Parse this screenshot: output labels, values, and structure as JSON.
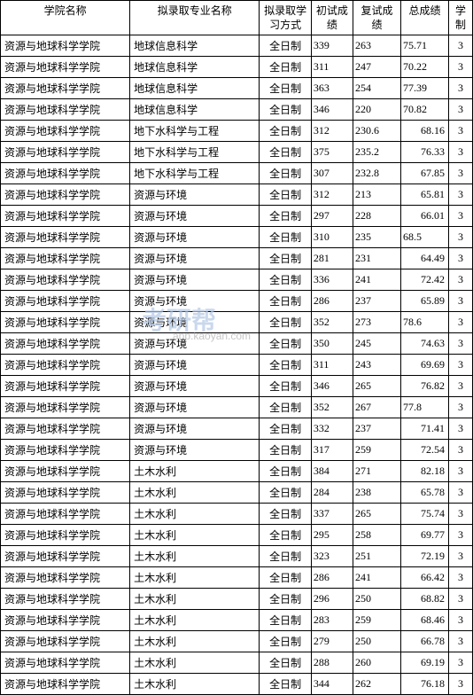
{
  "watermark": {
    "main": "考研帮",
    "sub": "app.kaoyan.com"
  },
  "columns": [
    {
      "label": "学院名称",
      "class": "col-school"
    },
    {
      "label": "拟录取专业名称",
      "class": "col-major"
    },
    {
      "label": "拟录取学习方式",
      "class": "col-mode"
    },
    {
      "label": "初试成绩",
      "class": "col-score1"
    },
    {
      "label": "复试成绩",
      "class": "col-score2"
    },
    {
      "label": "总成绩",
      "class": "col-total"
    },
    {
      "label": "学制",
      "class": "col-years"
    }
  ],
  "rows": [
    {
      "school": "资源与地球科学学院",
      "major": "地球信息科学",
      "mode": "全日制",
      "s1": "339",
      "s2": "263",
      "total": "75.71",
      "align": "left",
      "years": "3"
    },
    {
      "school": "资源与地球科学学院",
      "major": "地球信息科学",
      "mode": "全日制",
      "s1": "311",
      "s2": "247",
      "total": "70.22",
      "align": "left",
      "years": "3"
    },
    {
      "school": "资源与地球科学学院",
      "major": "地球信息科学",
      "mode": "全日制",
      "s1": "363",
      "s2": "254",
      "total": "77.39",
      "align": "left",
      "years": "3"
    },
    {
      "school": "资源与地球科学学院",
      "major": "地球信息科学",
      "mode": "全日制",
      "s1": "346",
      "s2": "220",
      "total": "70.82",
      "align": "left",
      "years": "3"
    },
    {
      "school": "资源与地球科学学院",
      "major": "地下水科学与工程",
      "mode": "全日制",
      "s1": "312",
      "s2": "230.6",
      "total": "68.16",
      "align": "right",
      "years": "3"
    },
    {
      "school": "资源与地球科学学院",
      "major": "地下水科学与工程",
      "mode": "全日制",
      "s1": "375",
      "s2": "235.2",
      "total": "76.33",
      "align": "right",
      "years": "3"
    },
    {
      "school": "资源与地球科学学院",
      "major": "地下水科学与工程",
      "mode": "全日制",
      "s1": "307",
      "s2": "232.8",
      "total": "67.85",
      "align": "right",
      "years": "3"
    },
    {
      "school": "资源与地球科学学院",
      "major": "资源与环境",
      "mode": "全日制",
      "s1": "312",
      "s2": "213",
      "total": "65.81",
      "align": "right",
      "years": "3"
    },
    {
      "school": "资源与地球科学学院",
      "major": "资源与环境",
      "mode": "全日制",
      "s1": "297",
      "s2": "228",
      "total": "66.01",
      "align": "right",
      "years": "3"
    },
    {
      "school": "资源与地球科学学院",
      "major": "资源与环境",
      "mode": "全日制",
      "s1": "310",
      "s2": "235",
      "total": "68.5",
      "align": "left",
      "years": "3"
    },
    {
      "school": "资源与地球科学学院",
      "major": "资源与环境",
      "mode": "全日制",
      "s1": "281",
      "s2": "231",
      "total": "64.49",
      "align": "right",
      "years": "3"
    },
    {
      "school": "资源与地球科学学院",
      "major": "资源与环境",
      "mode": "全日制",
      "s1": "336",
      "s2": "241",
      "total": "72.42",
      "align": "right",
      "years": "3"
    },
    {
      "school": "资源与地球科学学院",
      "major": "资源与环境",
      "mode": "全日制",
      "s1": "286",
      "s2": "237",
      "total": "65.89",
      "align": "right",
      "years": "3"
    },
    {
      "school": "资源与地球科学学院",
      "major": "资源与环境",
      "mode": "全日制",
      "s1": "352",
      "s2": "273",
      "total": "78.6",
      "align": "left",
      "years": "3"
    },
    {
      "school": "资源与地球科学学院",
      "major": "资源与环境",
      "mode": "全日制",
      "s1": "350",
      "s2": "245",
      "total": "74.63",
      "align": "right",
      "years": "3"
    },
    {
      "school": "资源与地球科学学院",
      "major": "资源与环境",
      "mode": "全日制",
      "s1": "311",
      "s2": "243",
      "total": "69.69",
      "align": "right",
      "years": "3"
    },
    {
      "school": "资源与地球科学学院",
      "major": "资源与环境",
      "mode": "全日制",
      "s1": "346",
      "s2": "265",
      "total": "76.82",
      "align": "right",
      "years": "3"
    },
    {
      "school": "资源与地球科学学院",
      "major": "资源与环境",
      "mode": "全日制",
      "s1": "352",
      "s2": "267",
      "total": "77.8",
      "align": "left",
      "years": "3"
    },
    {
      "school": "资源与地球科学学院",
      "major": "资源与环境",
      "mode": "全日制",
      "s1": "332",
      "s2": "237",
      "total": "71.41",
      "align": "right",
      "years": "3"
    },
    {
      "school": "资源与地球科学学院",
      "major": "资源与环境",
      "mode": "全日制",
      "s1": "317",
      "s2": "259",
      "total": "72.54",
      "align": "right",
      "years": "3"
    },
    {
      "school": "资源与地球科学学院",
      "major": "土木水利",
      "mode": "全日制",
      "s1": "384",
      "s2": "271",
      "total": "82.18",
      "align": "right",
      "years": "3"
    },
    {
      "school": "资源与地球科学学院",
      "major": "土木水利",
      "mode": "全日制",
      "s1": "284",
      "s2": "238",
      "total": "65.78",
      "align": "right",
      "years": "3"
    },
    {
      "school": "资源与地球科学学院",
      "major": "土木水利",
      "mode": "全日制",
      "s1": "337",
      "s2": "265",
      "total": "75.74",
      "align": "right",
      "years": "3"
    },
    {
      "school": "资源与地球科学学院",
      "major": "土木水利",
      "mode": "全日制",
      "s1": "295",
      "s2": "258",
      "total": "69.77",
      "align": "right",
      "years": "3"
    },
    {
      "school": "资源与地球科学学院",
      "major": "土木水利",
      "mode": "全日制",
      "s1": "323",
      "s2": "251",
      "total": "72.19",
      "align": "right",
      "years": "3"
    },
    {
      "school": "资源与地球科学学院",
      "major": "土木水利",
      "mode": "全日制",
      "s1": "286",
      "s2": "241",
      "total": "66.42",
      "align": "right",
      "years": "3"
    },
    {
      "school": "资源与地球科学学院",
      "major": "土木水利",
      "mode": "全日制",
      "s1": "296",
      "s2": "250",
      "total": "68.82",
      "align": "right",
      "years": "3"
    },
    {
      "school": "资源与地球科学学院",
      "major": "土木水利",
      "mode": "全日制",
      "s1": "283",
      "s2": "259",
      "total": "68.46",
      "align": "right",
      "years": "3"
    },
    {
      "school": "资源与地球科学学院",
      "major": "土木水利",
      "mode": "全日制",
      "s1": "279",
      "s2": "250",
      "total": "66.78",
      "align": "right",
      "years": "3"
    },
    {
      "school": "资源与地球科学学院",
      "major": "土木水利",
      "mode": "全日制",
      "s1": "288",
      "s2": "260",
      "total": "69.19",
      "align": "right",
      "years": "3"
    },
    {
      "school": "资源与地球科学学院",
      "major": "土木水利",
      "mode": "全日制",
      "s1": "344",
      "s2": "262",
      "total": "76.18",
      "align": "right",
      "years": "3"
    }
  ]
}
